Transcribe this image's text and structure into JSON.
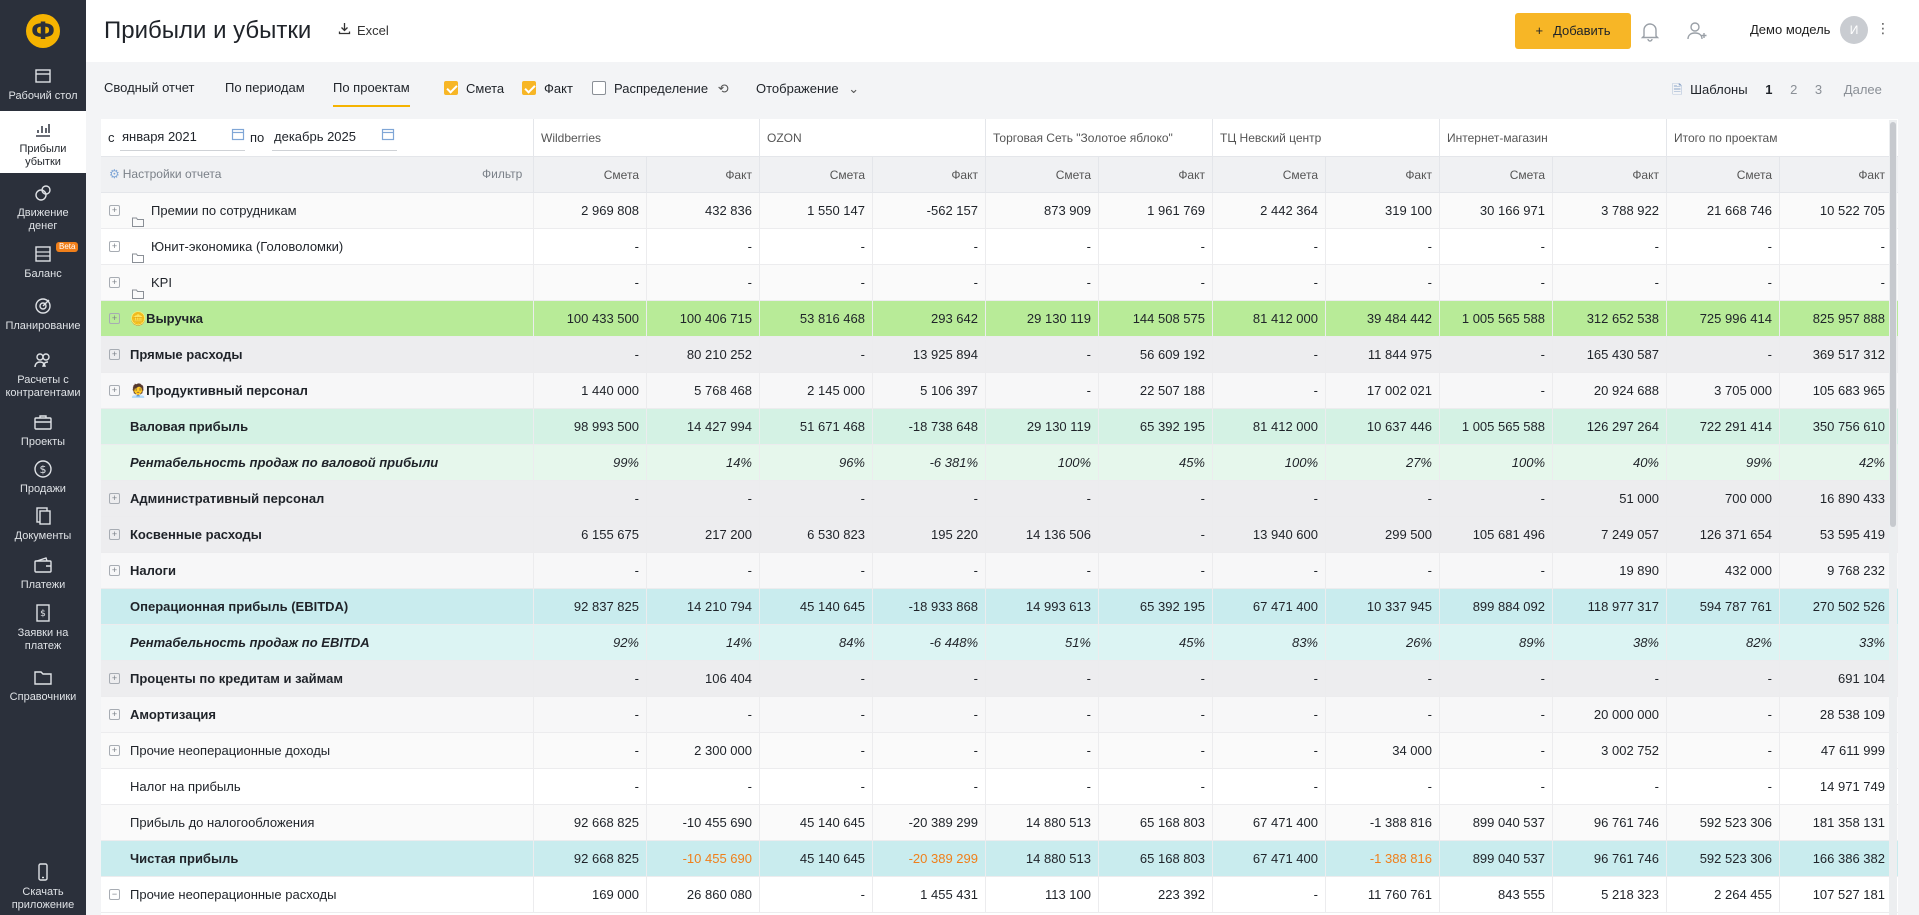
{
  "sidebar": {
    "logo": "Ф",
    "items": [
      {
        "label_lines": [
          "Рабочий стол"
        ],
        "icon": "desk-icon"
      },
      {
        "label_lines": [
          "Прибыли",
          "убытки"
        ],
        "icon": "chart-icon"
      },
      {
        "label_lines": [
          "Движение",
          "денег"
        ],
        "icon": "coins-icon"
      },
      {
        "label_lines": [
          "Баланс"
        ],
        "icon": "balance-icon",
        "badge": "Beta"
      },
      {
        "label_lines": [
          "Планирование"
        ],
        "icon": "target-icon"
      },
      {
        "label_lines": [
          "Расчеты с",
          "контрагентами"
        ],
        "icon": "people-icon"
      },
      {
        "label_lines": [
          "Проекты"
        ],
        "icon": "briefcase-icon"
      },
      {
        "label_lines": [
          "Продажи"
        ],
        "icon": "dollar-icon"
      },
      {
        "label_lines": [
          "Документы"
        ],
        "icon": "documents-icon"
      },
      {
        "label_lines": [
          "Платежи"
        ],
        "icon": "wallet-icon"
      },
      {
        "label_lines": [
          "Заявки на",
          "платеж"
        ],
        "icon": "request-icon"
      },
      {
        "label_lines": [
          "Справочники"
        ],
        "icon": "folder-icon"
      }
    ],
    "download": [
      "Скачать",
      "приложение"
    ]
  },
  "header": {
    "title": "Прибыли и убытки",
    "excel": "Excel",
    "add_button": "Добавить",
    "user": "Демо модель",
    "avatar": "И"
  },
  "toolbar": {
    "tabs": [
      "Сводный отчет",
      "По периодам",
      "По проектам"
    ],
    "active_tab": "По проектам",
    "checkboxes": [
      {
        "label": "Смета",
        "checked": true
      },
      {
        "label": "Факт",
        "checked": true
      },
      {
        "label": "Распределение",
        "checked": false
      }
    ],
    "display": "Отображение",
    "templates_label": "Шаблоны",
    "template_pages": [
      "1",
      "2",
      "3"
    ],
    "more": "Далее"
  },
  "report": {
    "from_label": "с",
    "from_value": "января 2021",
    "to_label": "по",
    "to_value": "декабрь 2025",
    "settings": "Настройки отчета",
    "filter": "Фильтр",
    "projects": [
      "Wildberries",
      "OZON",
      "Торговая Сеть \"Золотое яблоко\"",
      "ТЦ Невский центр",
      "Интернет-магазин",
      "Итого по проектам"
    ],
    "sub_headers": [
      "Смета",
      "Факт"
    ],
    "rows": [
      {
        "label": "Премии по сотрудникам",
        "style": "folder",
        "bg": "#fafafa",
        "values": [
          "2 969 808",
          "432 836",
          "1 550 147",
          "-562 157",
          "873 909",
          "1 961 769",
          "2 442 364",
          "319 100",
          "30 166 971",
          "3 788 922",
          "21 668 746",
          "10 522 705"
        ]
      },
      {
        "label": "Юнит-экономика (Головоломки)",
        "style": "folder",
        "bg": "#ffffff",
        "values": [
          "-",
          "-",
          "-",
          "-",
          "-",
          "-",
          "-",
          "-",
          "-",
          "-",
          "-",
          "-"
        ]
      },
      {
        "label": "KPI",
        "style": "folder",
        "bg": "#fafafa",
        "values": [
          "-",
          "-",
          "-",
          "-",
          "-",
          "-",
          "-",
          "-",
          "-",
          "-",
          "-",
          "-"
        ]
      },
      {
        "label": "🪙Выручка",
        "style": "group",
        "bg": "#b8eb98",
        "values": [
          "100 433 500",
          "100 406 715",
          "53 816 468",
          "293 642",
          "29 130 119",
          "144 508 575",
          "81 412 000",
          "39 484 442",
          "1 005 565 588",
          "312 652 538",
          "725 996 414",
          "825 957 888"
        ]
      },
      {
        "label": "Прямые расходы",
        "style": "group",
        "bg": "#ededef",
        "values": [
          "-",
          "80 210 252",
          "-",
          "13 925 894",
          "-",
          "56 609 192",
          "-",
          "11 844 975",
          "-",
          "165 430 587",
          "-",
          "369 517 312"
        ]
      },
      {
        "label": "🧑‍💼Продуктивный персонал",
        "style": "group",
        "bg": "#f7f7f8",
        "values": [
          "1 440 000",
          "5 768 468",
          "2 145 000",
          "5 106 397",
          "-",
          "22 507 188",
          "-",
          "17 002 021",
          "-",
          "20 924 688",
          "3 705 000",
          "105 683 965"
        ]
      },
      {
        "label": "Валовая прибыль",
        "style": "total",
        "bg": "#d4f2e4",
        "values": [
          "98 993 500",
          "14 427 994",
          "51 671 468",
          "-18 738 648",
          "29 130 119",
          "65 392 195",
          "81 412 000",
          "10 637 446",
          "1 005 565 588",
          "126 297 264",
          "722 291 414",
          "350 756 610"
        ]
      },
      {
        "label": "Рентабельность продаж по валовой прибыли",
        "style": "ratio",
        "bg": "#e6f7ec",
        "values": [
          "99%",
          "14%",
          "96%",
          "-6 381%",
          "100%",
          "45%",
          "100%",
          "27%",
          "100%",
          "40%",
          "99%",
          "42%"
        ]
      },
      {
        "label": "Административный персонал",
        "style": "group",
        "bg": "#ededef",
        "values": [
          "-",
          "-",
          "-",
          "-",
          "-",
          "-",
          "-",
          "-",
          "-",
          "51 000",
          "700 000",
          "16 890 433"
        ]
      },
      {
        "label": "Косвенные расходы",
        "style": "group",
        "bg": "#ededef",
        "values": [
          "6 155 675",
          "217 200",
          "6 530 823",
          "195 220",
          "14 136 506",
          "-",
          "13 940 600",
          "299 500",
          "105 681 496",
          "7 249 057",
          "126 371 654",
          "53 595 419"
        ]
      },
      {
        "label": "Налоги",
        "style": "group",
        "bg": "#f7f7f8",
        "values": [
          "-",
          "-",
          "-",
          "-",
          "-",
          "-",
          "-",
          "-",
          "-",
          "19 890",
          "432 000",
          "9 768 232"
        ]
      },
      {
        "label": "Операционная прибыль (EBITDA)",
        "style": "total",
        "bg": "#c9ecee",
        "values": [
          "92 837 825",
          "14 210 794",
          "45 140 645",
          "-18 933 868",
          "14 993 613",
          "65 392 195",
          "67 471 400",
          "10 337 945",
          "899 884 092",
          "118 977 317",
          "594 787 761",
          "270 502 526"
        ]
      },
      {
        "label": "Рентабельность продаж по EBITDA",
        "style": "ratio",
        "bg": "#dcf4f3",
        "values": [
          "92%",
          "14%",
          "84%",
          "-6 448%",
          "51%",
          "45%",
          "83%",
          "26%",
          "89%",
          "38%",
          "82%",
          "33%"
        ]
      },
      {
        "label": "Проценты по кредитам и займам",
        "style": "group",
        "bg": "#ededef",
        "values": [
          "-",
          "106 404",
          "-",
          "-",
          "-",
          "-",
          "-",
          "-",
          "-",
          "-",
          "-",
          "691 104"
        ]
      },
      {
        "label": "Амортизация",
        "style": "group",
        "bg": "#f7f7f8",
        "values": [
          "-",
          "-",
          "-",
          "-",
          "-",
          "-",
          "-",
          "-",
          "-",
          "20 000 000",
          "-",
          "28 538 109"
        ]
      },
      {
        "label": "Прочие неоперационные доходы",
        "style": "plain-exp",
        "bg": "#fafafa",
        "values": [
          "-",
          "2 300 000",
          "-",
          "-",
          "-",
          "-",
          "-",
          "34 000",
          "-",
          "3 002 752",
          "-",
          "47 611 999"
        ]
      },
      {
        "label": "Налог на прибыль",
        "style": "plain",
        "bg": "#ffffff",
        "values": [
          "-",
          "-",
          "-",
          "-",
          "-",
          "-",
          "-",
          "-",
          "-",
          "-",
          "-",
          "14 971 749"
        ]
      },
      {
        "label": "Прибыль до налогообложения",
        "style": "plain",
        "bg": "#fafafa",
        "values": [
          "92 668 825",
          "-10 455 690",
          "45 140 645",
          "-20 389 299",
          "14 880 513",
          "65 168 803",
          "67 471 400",
          "-1 388 816",
          "899 040 537",
          "96 761 746",
          "592 523 306",
          "181 358 131"
        ]
      },
      {
        "label": "Чистая прибыль",
        "style": "net",
        "bg": "#c9ecee",
        "orange_cols": [
          1,
          3,
          7
        ],
        "values": [
          "92 668 825",
          "-10 455 690",
          "45 140 645",
          "-20 389 299",
          "14 880 513",
          "65 168 803",
          "67 471 400",
          "-1 388 816",
          "899 040 537",
          "96 761 746",
          "592 523 306",
          "166 386 382"
        ]
      },
      {
        "label": "Прочие неоперационные расходы",
        "style": "plain-minus",
        "bg": "#ffffff",
        "values": [
          "169 000",
          "26 860 080",
          "-",
          "1 455 431",
          "113 100",
          "223 392",
          "-",
          "11 760 761",
          "843 555",
          "5 218 323",
          "2 264 455",
          "107 527 181"
        ]
      }
    ]
  }
}
